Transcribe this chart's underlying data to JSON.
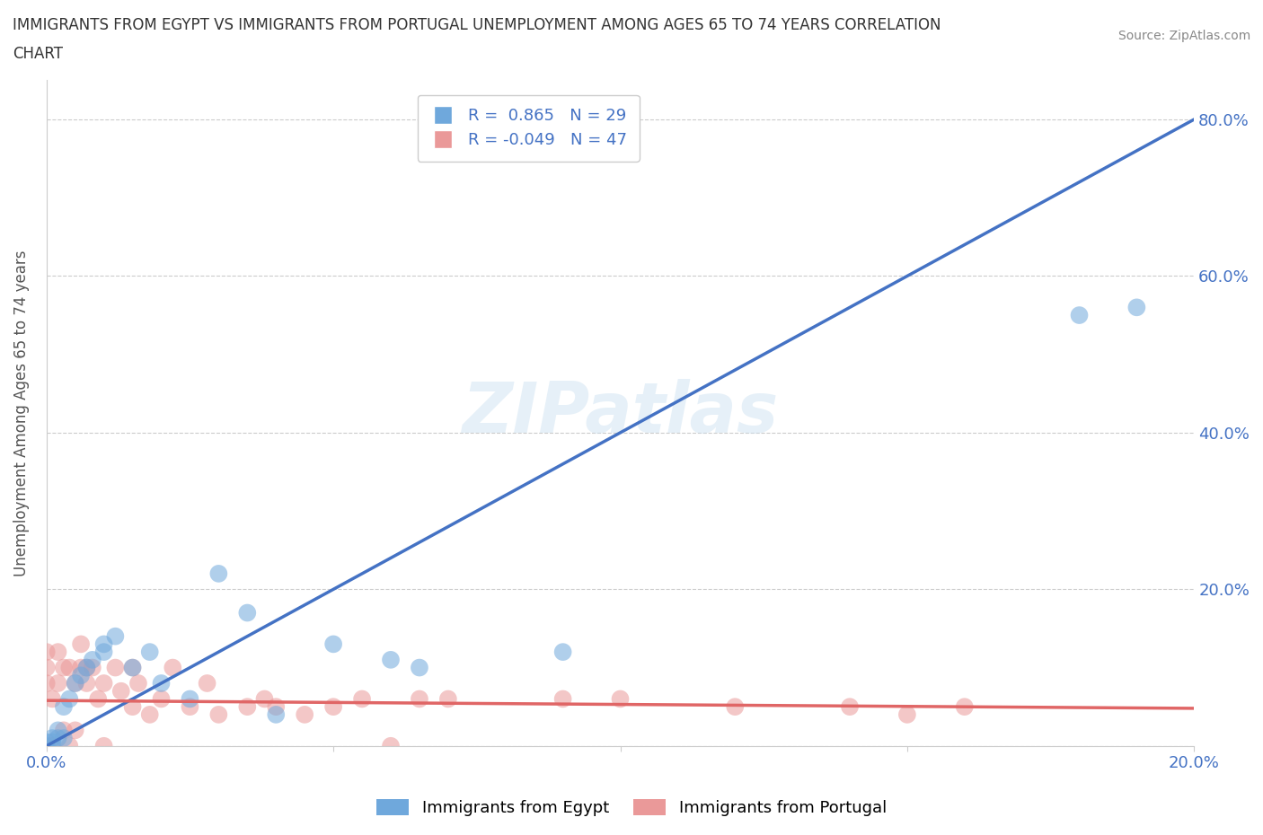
{
  "title_line1": "IMMIGRANTS FROM EGYPT VS IMMIGRANTS FROM PORTUGAL UNEMPLOYMENT AMONG AGES 65 TO 74 YEARS CORRELATION",
  "title_line2": "CHART",
  "source": "Source: ZipAtlas.com",
  "ylabel": "Unemployment Among Ages 65 to 74 years",
  "xlim": [
    0.0,
    0.2
  ],
  "ylim": [
    0.0,
    0.85
  ],
  "xticks": [
    0.0,
    0.05,
    0.1,
    0.15,
    0.2
  ],
  "yticks": [
    0.0,
    0.2,
    0.4,
    0.6,
    0.8
  ],
  "xticklabels": [
    "0.0%",
    "",
    "",
    "",
    "20.0%"
  ],
  "yticklabels": [
    "",
    "20.0%",
    "40.0%",
    "60.0%",
    "80.0%"
  ],
  "watermark": "ZIPatlas",
  "egypt_color": "#6fa8dc",
  "portugal_color": "#ea9999",
  "egypt_R": 0.865,
  "egypt_N": 29,
  "portugal_R": -0.049,
  "portugal_N": 47,
  "egypt_line_color": "#4472c4",
  "portugal_line_color": "#e06666",
  "legend_label_egypt": "Immigrants from Egypt",
  "legend_label_portugal": "Immigrants from Portugal",
  "egypt_line_x": [
    0.0,
    0.2
  ],
  "egypt_line_y": [
    0.0,
    0.8
  ],
  "portugal_line_x": [
    0.0,
    0.2
  ],
  "portugal_line_y": [
    0.058,
    0.048
  ],
  "egypt_points_x": [
    0.0,
    0.0,
    0.001,
    0.001,
    0.002,
    0.002,
    0.003,
    0.003,
    0.004,
    0.005,
    0.006,
    0.007,
    0.008,
    0.01,
    0.01,
    0.012,
    0.015,
    0.018,
    0.02,
    0.025,
    0.03,
    0.035,
    0.04,
    0.05,
    0.06,
    0.065,
    0.09,
    0.18,
    0.19
  ],
  "egypt_points_y": [
    0.0,
    0.005,
    0.005,
    0.01,
    0.01,
    0.02,
    0.01,
    0.05,
    0.06,
    0.08,
    0.09,
    0.1,
    0.11,
    0.12,
    0.13,
    0.14,
    0.1,
    0.12,
    0.08,
    0.06,
    0.22,
    0.17,
    0.04,
    0.13,
    0.11,
    0.1,
    0.12,
    0.55,
    0.56
  ],
  "portugal_points_x": [
    0.0,
    0.0,
    0.0,
    0.001,
    0.001,
    0.002,
    0.002,
    0.003,
    0.003,
    0.004,
    0.004,
    0.005,
    0.005,
    0.006,
    0.006,
    0.007,
    0.007,
    0.008,
    0.009,
    0.01,
    0.01,
    0.012,
    0.013,
    0.015,
    0.015,
    0.016,
    0.018,
    0.02,
    0.022,
    0.025,
    0.028,
    0.03,
    0.035,
    0.038,
    0.04,
    0.045,
    0.05,
    0.055,
    0.06,
    0.065,
    0.07,
    0.09,
    0.1,
    0.12,
    0.14,
    0.15,
    0.16
  ],
  "portugal_points_y": [
    0.08,
    0.1,
    0.12,
    0.0,
    0.06,
    0.08,
    0.12,
    0.02,
    0.1,
    0.0,
    0.1,
    0.02,
    0.08,
    0.1,
    0.13,
    0.08,
    0.1,
    0.1,
    0.06,
    0.0,
    0.08,
    0.1,
    0.07,
    0.05,
    0.1,
    0.08,
    0.04,
    0.06,
    0.1,
    0.05,
    0.08,
    0.04,
    0.05,
    0.06,
    0.05,
    0.04,
    0.05,
    0.06,
    0.0,
    0.06,
    0.06,
    0.06,
    0.06,
    0.05,
    0.05,
    0.04,
    0.05
  ]
}
